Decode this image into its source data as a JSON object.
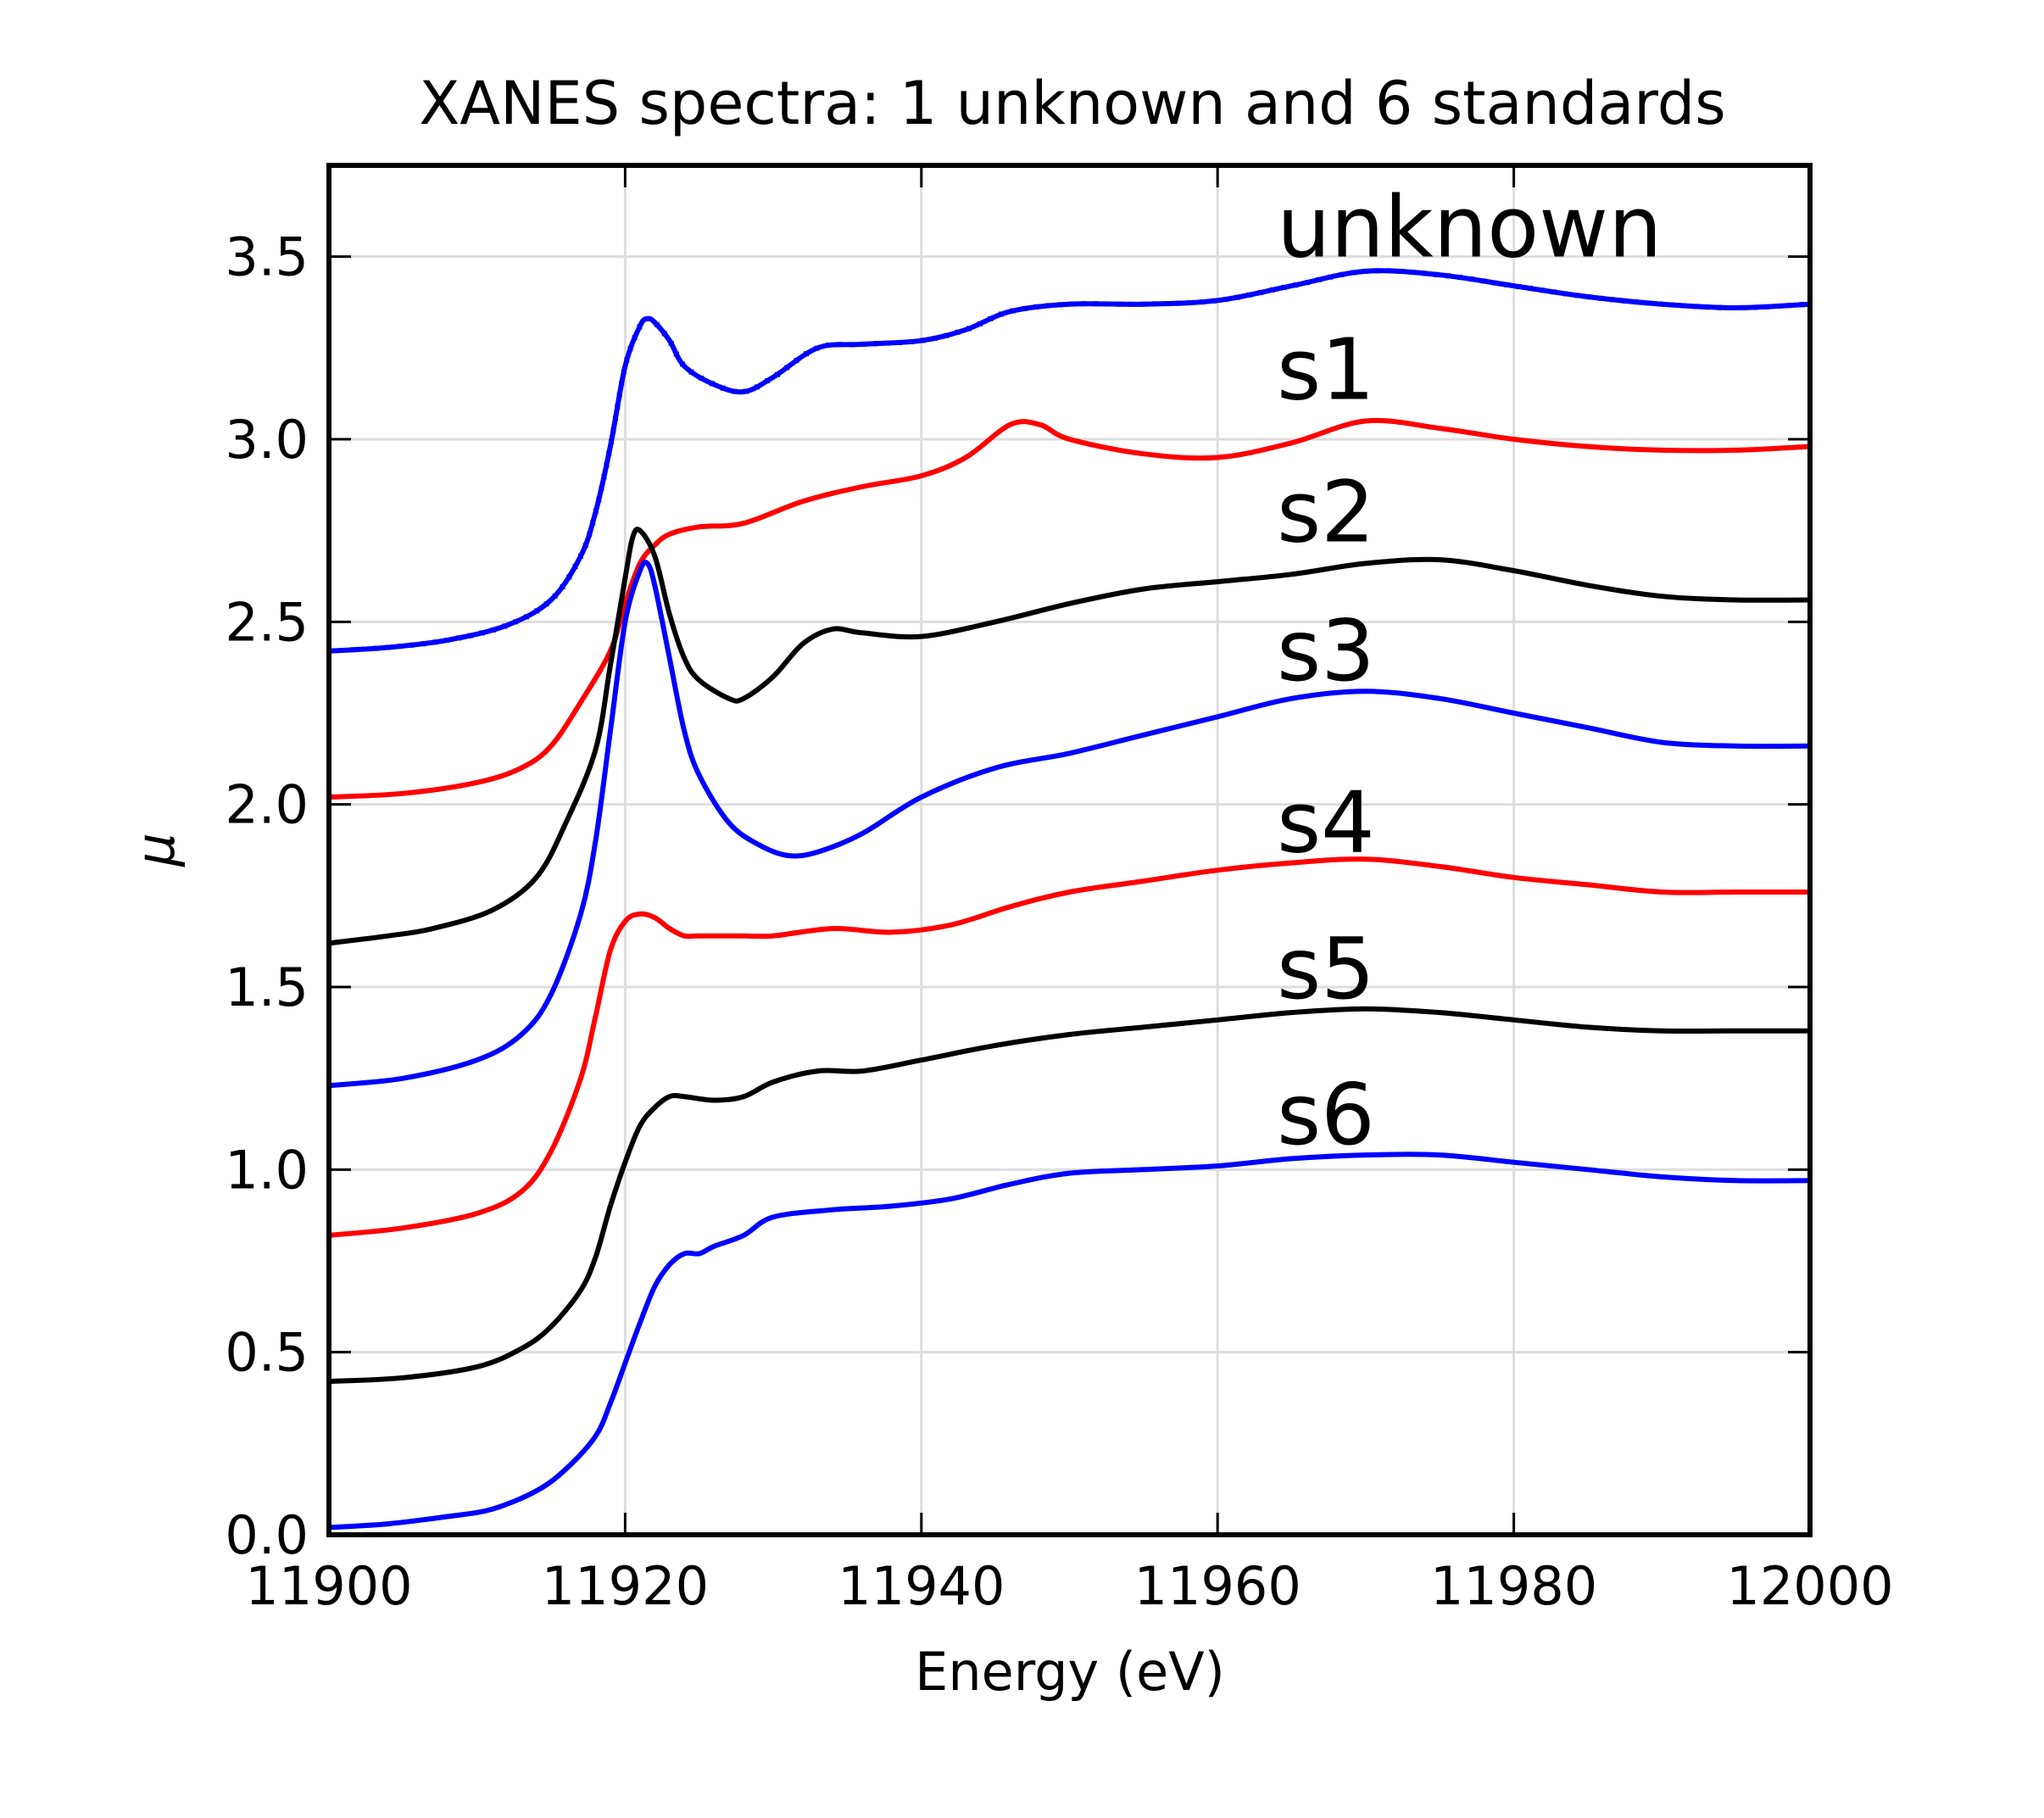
{
  "chart_data": {
    "type": "line",
    "title": "XANES spectra: 1 unknown and 6 standards",
    "xlabel": "Energy (eV)",
    "ylabel": "μ",
    "xlim": [
      11900,
      12000
    ],
    "ylim": [
      0,
      3.75
    ],
    "xticks": [
      "11900",
      "11920",
      "11940",
      "11960",
      "11980",
      "12000"
    ],
    "yticks": [
      "0.0",
      "0.5",
      "1.0",
      "1.5",
      "2.0",
      "2.5",
      "3.0",
      "3.5"
    ],
    "grid": true,
    "legend": "inline labels at right",
    "series": [
      {
        "name": "unknown",
        "color": "#0000ff",
        "markers": true,
        "label_pos": [
          11964,
          3.5
        ],
        "x": [
          11900,
          11904,
          11908,
          11912,
          11915,
          11917,
          11918,
          11919,
          11920,
          11921,
          11921.5,
          11922,
          11923,
          11924,
          11926,
          11928,
          11930,
          11933,
          11936,
          11940,
          11943,
          11946,
          11950,
          11955,
          11960,
          11965,
          11970,
          11975,
          11980,
          11985,
          11990,
          11995,
          12000
        ],
        "y": [
          2.42,
          2.43,
          2.45,
          2.49,
          2.56,
          2.68,
          2.8,
          2.98,
          3.2,
          3.31,
          3.33,
          3.32,
          3.27,
          3.2,
          3.15,
          3.13,
          3.17,
          3.25,
          3.26,
          3.27,
          3.3,
          3.35,
          3.37,
          3.37,
          3.38,
          3.42,
          3.46,
          3.45,
          3.42,
          3.39,
          3.37,
          3.36,
          3.37
        ]
      },
      {
        "name": "s1",
        "color": "#ff0000",
        "markers": false,
        "label_pos": [
          11964,
          3.11
        ],
        "x": [
          11900,
          11905,
          11910,
          11913,
          11915,
          11917,
          11919,
          11920,
          11921,
          11922,
          11923,
          11925,
          11928,
          11932,
          11936,
          11940,
          11943,
          11946,
          11948,
          11950,
          11955,
          11960,
          11965,
          11970,
          11975,
          11980,
          11985,
          11990,
          11995,
          12000
        ],
        "y": [
          2.02,
          2.03,
          2.06,
          2.1,
          2.16,
          2.28,
          2.42,
          2.55,
          2.66,
          2.71,
          2.74,
          2.76,
          2.77,
          2.83,
          2.87,
          2.9,
          2.95,
          3.04,
          3.04,
          3.0,
          2.96,
          2.95,
          2.99,
          3.05,
          3.03,
          3.0,
          2.98,
          2.97,
          2.97,
          2.98
        ]
      },
      {
        "name": "s2",
        "color": "#000000",
        "markers": false,
        "label_pos": [
          11964,
          2.72
        ],
        "x": [
          11900,
          11904,
          11907,
          11911,
          11914,
          11916,
          11918,
          11919,
          11920,
          11920.5,
          11921,
          11922,
          11923,
          11924,
          11925,
          11927,
          11928,
          11930,
          11932,
          11934,
          11936,
          11940,
          11945,
          11950,
          11955,
          11960,
          11965,
          11970,
          11975,
          11980,
          11985,
          11990,
          11995,
          12000
        ],
        "y": [
          1.62,
          1.64,
          1.66,
          1.71,
          1.8,
          1.95,
          2.15,
          2.38,
          2.62,
          2.73,
          2.75,
          2.68,
          2.52,
          2.4,
          2.34,
          2.29,
          2.29,
          2.35,
          2.44,
          2.48,
          2.47,
          2.46,
          2.5,
          2.55,
          2.59,
          2.61,
          2.63,
          2.66,
          2.67,
          2.64,
          2.6,
          2.57,
          2.56,
          2.56
        ]
      },
      {
        "name": "s3",
        "color": "#0000ff",
        "markers": false,
        "label_pos": [
          11964,
          2.34
        ],
        "x": [
          11900,
          11905,
          11910,
          11913,
          11915,
          11917,
          11918,
          11919,
          11920,
          11921,
          11921.5,
          11922,
          11923,
          11924,
          11925,
          11927,
          11929,
          11931,
          11933,
          11936,
          11940,
          11945,
          11950,
          11955,
          11960,
          11965,
          11970,
          11975,
          11980,
          11985,
          11990,
          11995,
          12000
        ],
        "y": [
          1.23,
          1.25,
          1.3,
          1.37,
          1.48,
          1.7,
          1.9,
          2.2,
          2.5,
          2.64,
          2.66,
          2.6,
          2.4,
          2.2,
          2.08,
          1.95,
          1.89,
          1.86,
          1.87,
          1.92,
          2.02,
          2.1,
          2.14,
          2.19,
          2.24,
          2.29,
          2.31,
          2.29,
          2.25,
          2.21,
          2.17,
          2.16,
          2.16
        ]
      },
      {
        "name": "s4",
        "color": "#ff0000",
        "markers": false,
        "label_pos": [
          11964,
          1.87
        ],
        "x": [
          11900,
          11905,
          11910,
          11913,
          11915,
          11917,
          11918,
          11919,
          11920,
          11921,
          11922,
          11923,
          11924,
          11925,
          11928,
          11930,
          11934,
          11938,
          11942,
          11946,
          11950,
          11955,
          11960,
          11965,
          11970,
          11975,
          11980,
          11985,
          11990,
          11995,
          12000
        ],
        "y": [
          0.82,
          0.84,
          0.88,
          0.94,
          1.05,
          1.25,
          1.42,
          1.6,
          1.68,
          1.7,
          1.69,
          1.66,
          1.64,
          1.64,
          1.64,
          1.64,
          1.66,
          1.65,
          1.67,
          1.72,
          1.76,
          1.79,
          1.82,
          1.84,
          1.85,
          1.83,
          1.8,
          1.78,
          1.76,
          1.76,
          1.76
        ]
      },
      {
        "name": "s5",
        "color": "#000000",
        "markers": false,
        "label_pos": [
          11964,
          1.47
        ],
        "x": [
          11900,
          11905,
          11910,
          11913,
          11915,
          11917,
          11918,
          11919,
          11920,
          11921,
          11922,
          11923,
          11924,
          11926,
          11928,
          11930,
          11933,
          11936,
          11940,
          11945,
          11950,
          11955,
          11960,
          11965,
          11970,
          11975,
          11980,
          11985,
          11990,
          11995,
          12000
        ],
        "y": [
          0.42,
          0.43,
          0.46,
          0.51,
          0.57,
          0.67,
          0.76,
          0.9,
          1.02,
          1.12,
          1.17,
          1.2,
          1.2,
          1.19,
          1.2,
          1.24,
          1.27,
          1.27,
          1.3,
          1.34,
          1.37,
          1.39,
          1.41,
          1.43,
          1.44,
          1.43,
          1.41,
          1.39,
          1.38,
          1.38,
          1.38
        ]
      },
      {
        "name": "s6",
        "color": "#0000ff",
        "markers": false,
        "label_pos": [
          11964,
          1.07
        ],
        "x": [
          11900,
          11904,
          11908,
          11911,
          11914,
          11916,
          11918,
          11919,
          11920,
          11921,
          11922,
          11923,
          11924,
          11925,
          11926,
          11928,
          11930,
          11934,
          11938,
          11942,
          11946,
          11950,
          11955,
          11960,
          11965,
          11970,
          11975,
          11980,
          11985,
          11990,
          11995,
          12000
        ],
        "y": [
          0.02,
          0.03,
          0.05,
          0.07,
          0.12,
          0.18,
          0.27,
          0.36,
          0.47,
          0.58,
          0.68,
          0.74,
          0.77,
          0.77,
          0.79,
          0.82,
          0.87,
          0.89,
          0.9,
          0.92,
          0.96,
          0.99,
          1.0,
          1.01,
          1.03,
          1.04,
          1.04,
          1.02,
          1.0,
          0.98,
          0.97,
          0.97
        ]
      }
    ]
  }
}
